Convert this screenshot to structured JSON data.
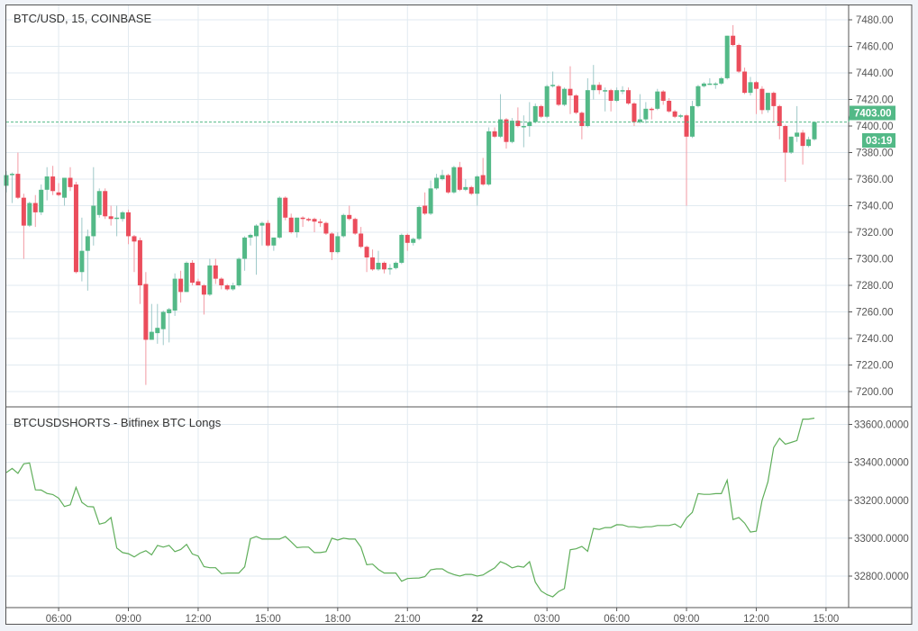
{
  "chart_data": [
    {
      "type": "candlestick",
      "title": "BTC/USD, 15, COINBASE",
      "interval_minutes": 15,
      "ylim": [
        7200,
        7480
      ],
      "yticks": [
        7200,
        7220,
        7240,
        7260,
        7280,
        7300,
        7320,
        7340,
        7360,
        7380,
        7400,
        7420,
        7440,
        7460,
        7480
      ],
      "ytick_decimals": 2,
      "grid": true,
      "last_price": 7403.0,
      "last_price_label": "7403.00",
      "countdown_label": "03:19",
      "colors": {
        "up": "#53b987",
        "down": "#eb4d5c",
        "up_wick": "#9fc9c9",
        "down_wick": "#f29aa4",
        "grid": "#e1eaf0"
      },
      "candles_ohlc": [
        [
          7355,
          7366,
          7350,
          7363
        ],
        [
          7363,
          7365,
          7342,
          7364
        ],
        [
          7364,
          7380,
          7345,
          7346
        ],
        [
          7346,
          7349,
          7300,
          7325
        ],
        [
          7325,
          7343,
          7324,
          7342
        ],
        [
          7342,
          7348,
          7324,
          7335
        ],
        [
          7335,
          7356,
          7333,
          7352
        ],
        [
          7352,
          7369,
          7344,
          7362
        ],
        [
          7362,
          7370,
          7348,
          7351
        ],
        [
          7350,
          7357,
          7347,
          7348
        ],
        [
          7346,
          7361,
          7340,
          7361
        ],
        [
          7361,
          7369,
          7351,
          7354
        ],
        [
          7356,
          7358,
          7289,
          7290
        ],
        [
          7290,
          7331,
          7283,
          7306
        ],
        [
          7306,
          7322,
          7276,
          7317
        ],
        [
          7317,
          7369,
          7310,
          7340
        ],
        [
          7333,
          7353,
          7331,
          7351
        ],
        [
          7351,
          7353,
          7330,
          7332
        ],
        [
          7332,
          7340,
          7325,
          7330
        ],
        [
          7330,
          7340,
          7317,
          7331
        ],
        [
          7330,
          7336,
          7328,
          7335
        ],
        [
          7335,
          7337,
          7311,
          7317
        ],
        [
          7317,
          7318,
          7290,
          7313
        ],
        [
          7314,
          7316,
          7266,
          7280
        ],
        [
          7281,
          7290,
          7205,
          7239
        ],
        [
          7239,
          7266,
          7239,
          7245
        ],
        [
          7244,
          7266,
          7236,
          7248
        ],
        [
          7247,
          7261,
          7235,
          7260
        ],
        [
          7259,
          7263,
          7237,
          7262
        ],
        [
          7261,
          7289,
          7257,
          7285
        ],
        [
          7285,
          7291,
          7267,
          7275
        ],
        [
          7275,
          7298,
          7275,
          7297
        ],
        [
          7297,
          7299,
          7280,
          7282
        ],
        [
          7283,
          7285,
          7280,
          7280
        ],
        [
          7280,
          7281,
          7258,
          7273
        ],
        [
          7273,
          7300,
          7272,
          7295
        ],
        [
          7295,
          7300,
          7281,
          7285
        ],
        [
          7285,
          7286,
          7277,
          7280
        ],
        [
          7280,
          7281,
          7276,
          7277
        ],
        [
          7277,
          7282,
          7276,
          7280
        ],
        [
          7280,
          7301,
          7279,
          7300
        ],
        [
          7300,
          7317,
          7291,
          7316
        ],
        [
          7316,
          7319,
          7310,
          7318
        ],
        [
          7317,
          7326,
          7288,
          7325
        ],
        [
          7325,
          7328,
          7310,
          7327
        ],
        [
          7327,
          7329,
          7309,
          7310
        ],
        [
          7310,
          7316,
          7306,
          7316
        ],
        [
          7316,
          7347,
          7315,
          7346
        ],
        [
          7346,
          7347,
          7329,
          7331
        ],
        [
          7331,
          7334,
          7319,
          7320
        ],
        [
          7320,
          7331,
          7316,
          7331
        ],
        [
          7331,
          7332,
          7324,
          7330
        ],
        [
          7330,
          7331,
          7328,
          7329
        ],
        [
          7330,
          7331,
          7320,
          7328
        ],
        [
          7328,
          7330,
          7324,
          7327
        ],
        [
          7327,
          7328,
          7318,
          7319
        ],
        [
          7319,
          7320,
          7299,
          7305
        ],
        [
          7305,
          7320,
          7304,
          7317
        ],
        [
          7317,
          7334,
          7316,
          7333
        ],
        [
          7333,
          7340,
          7329,
          7330
        ],
        [
          7330,
          7331,
          7318,
          7319
        ],
        [
          7319,
          7324,
          7308,
          7309
        ],
        [
          7309,
          7310,
          7290,
          7301
        ],
        [
          7301,
          7307,
          7291,
          7292
        ],
        [
          7292,
          7306,
          7291,
          7297
        ],
        [
          7297,
          7298,
          7289,
          7292
        ],
        [
          7292,
          7296,
          7288,
          7293
        ],
        [
          7293,
          7298,
          7292,
          7297
        ],
        [
          7297,
          7319,
          7296,
          7318
        ],
        [
          7318,
          7319,
          7306,
          7312
        ],
        [
          7312,
          7316,
          7310,
          7315
        ],
        [
          7315,
          7340,
          7314,
          7339
        ],
        [
          7340,
          7350,
          7333,
          7334
        ],
        [
          7334,
          7359,
          7333,
          7353
        ],
        [
          7353,
          7364,
          7352,
          7361
        ],
        [
          7360,
          7367,
          7359,
          7363
        ],
        [
          7363,
          7364,
          7349,
          7350
        ],
        [
          7350,
          7370,
          7349,
          7369
        ],
        [
          7369,
          7373,
          7351,
          7352
        ],
        [
          7352,
          7360,
          7351,
          7354
        ],
        [
          7354,
          7355,
          7348,
          7349
        ],
        [
          7349,
          7363,
          7340,
          7362
        ],
        [
          7363,
          7376,
          7355,
          7356
        ],
        [
          7356,
          7399,
          7355,
          7396
        ],
        [
          7396,
          7399,
          7391,
          7392
        ],
        [
          7392,
          7424,
          7391,
          7405
        ],
        [
          7405,
          7406,
          7383,
          7388
        ],
        [
          7388,
          7406,
          7387,
          7404
        ],
        [
          7404,
          7414,
          7399,
          7400
        ],
        [
          7400,
          7408,
          7384,
          7400
        ],
        [
          7400,
          7418,
          7392,
          7403
        ],
        [
          7403,
          7417,
          7402,
          7415
        ],
        [
          7415,
          7416,
          7406,
          7407
        ],
        [
          7407,
          7431,
          7406,
          7430
        ],
        [
          7430,
          7441,
          7429,
          7431
        ],
        [
          7430,
          7431,
          7415,
          7416
        ],
        [
          7416,
          7429,
          7415,
          7428
        ],
        [
          7428,
          7445,
          7409,
          7423
        ],
        [
          7423,
          7424,
          7409,
          7410
        ],
        [
          7410,
          7411,
          7390,
          7400
        ],
        [
          7400,
          7436,
          7399,
          7427
        ],
        [
          7427,
          7446,
          7420,
          7431
        ],
        [
          7431,
          7433,
          7424,
          7427
        ],
        [
          7427,
          7429,
          7411,
          7427
        ],
        [
          7427,
          7428,
          7411,
          7419
        ],
        [
          7419,
          7429,
          7418,
          7427
        ],
        [
          7426,
          7430,
          7424,
          7427
        ],
        [
          7427,
          7429,
          7416,
          7417
        ],
        [
          7417,
          7418,
          7400,
          7403
        ],
        [
          7403,
          7424,
          7402,
          7405
        ],
        [
          7405,
          7418,
          7402,
          7413
        ],
        [
          7413,
          7414,
          7405,
          7412
        ],
        [
          7413,
          7428,
          7412,
          7426
        ],
        [
          7426,
          7427,
          7416,
          7419
        ],
        [
          7419,
          7421,
          7410,
          7411
        ],
        [
          7411,
          7412,
          7406,
          7407
        ],
        [
          7407,
          7409,
          7406,
          7408
        ],
        [
          7408,
          7409,
          7340,
          7392
        ],
        [
          7392,
          7419,
          7391,
          7415
        ],
        [
          7415,
          7431,
          7414,
          7430
        ],
        [
          7430,
          7433,
          7429,
          7432
        ],
        [
          7432,
          7436,
          7431,
          7432
        ],
        [
          7432,
          7433,
          7428,
          7432
        ],
        [
          7432,
          7437,
          7431,
          7436
        ],
        [
          7436,
          7468,
          7435,
          7468
        ],
        [
          7468,
          7476,
          7460,
          7461
        ],
        [
          7461,
          7462,
          7440,
          7441
        ],
        [
          7441,
          7444,
          7424,
          7425
        ],
        [
          7425,
          7437,
          7423,
          7433
        ],
        [
          7433,
          7434,
          7409,
          7428
        ],
        [
          7428,
          7430,
          7409,
          7412
        ],
        [
          7412,
          7425,
          7410,
          7425
        ],
        [
          7425,
          7426,
          7403,
          7415
        ],
        [
          7415,
          7416,
          7390,
          7400
        ],
        [
          7400,
          7401,
          7358,
          7380
        ],
        [
          7380,
          7392,
          7379,
          7392
        ],
        [
          7392,
          7415,
          7388,
          7395
        ],
        [
          7395,
          7397,
          7371,
          7385
        ],
        [
          7385,
          7392,
          7384,
          7390
        ],
        [
          7390,
          7403,
          7389,
          7403
        ]
      ]
    },
    {
      "type": "line",
      "title": "BTCUSDSHORTS - Bitfinex BTC Longs",
      "ylim": [
        32700,
        33680
      ],
      "yticks": [
        32800,
        33000,
        33200,
        33400,
        33600
      ],
      "ytick_decimals": 4,
      "grid": true,
      "line_color": "#5fae5a",
      "values": [
        33346,
        33368,
        33342,
        33392,
        33397,
        33255,
        33254,
        33236,
        33230,
        33211,
        33167,
        33176,
        33268,
        33189,
        33167,
        33165,
        33074,
        33082,
        33109,
        32948,
        32924,
        32918,
        32901,
        32921,
        32934,
        32912,
        32962,
        32953,
        32962,
        32929,
        32940,
        32967,
        32917,
        32906,
        32850,
        32844,
        32844,
        32813,
        32816,
        32816,
        32816,
        32849,
        32997,
        33009,
        32995,
        32995,
        32995,
        32995,
        33009,
        32981,
        32950,
        32953,
        32953,
        32924,
        32924,
        32929,
        33000,
        32990,
        33000,
        32995,
        32995,
        32953,
        32860,
        32863,
        32835,
        32816,
        32816,
        32816,
        32773,
        32787,
        32789,
        32790,
        32797,
        32833,
        32838,
        32838,
        32819,
        32808,
        32800,
        32809,
        32809,
        32800,
        32806,
        32825,
        32843,
        32876,
        32863,
        32843,
        32852,
        32847,
        32876,
        32768,
        32721,
        32702,
        32691,
        32719,
        32734,
        32939,
        32944,
        32956,
        32931,
        33051,
        33046,
        33056,
        33056,
        33071,
        33070,
        33060,
        33060,
        33056,
        33060,
        33060,
        33067,
        33067,
        33067,
        33075,
        33056,
        33106,
        33136,
        33235,
        33231,
        33231,
        33235,
        33235,
        33306,
        33098,
        33109,
        33079,
        33032,
        33037,
        33199,
        33297,
        33478,
        33527,
        33496,
        33505,
        33515,
        33628,
        33628,
        33633
      ]
    }
  ],
  "time_axis": {
    "labels": [
      {
        "text": "06:00",
        "bold": false
      },
      {
        "text": "09:00",
        "bold": false
      },
      {
        "text": "12:00",
        "bold": false
      },
      {
        "text": "15:00",
        "bold": false
      },
      {
        "text": "18:00",
        "bold": false
      },
      {
        "text": "21:00",
        "bold": false
      },
      {
        "text": "22",
        "bold": true
      },
      {
        "text": "03:00",
        "bold": false
      },
      {
        "text": "06:00",
        "bold": false
      },
      {
        "text": "09:00",
        "bold": false
      },
      {
        "text": "12:00",
        "bold": false
      },
      {
        "text": "15:00",
        "bold": false
      }
    ],
    "candles_per_label": 12,
    "first_label_candle_index": 9
  }
}
